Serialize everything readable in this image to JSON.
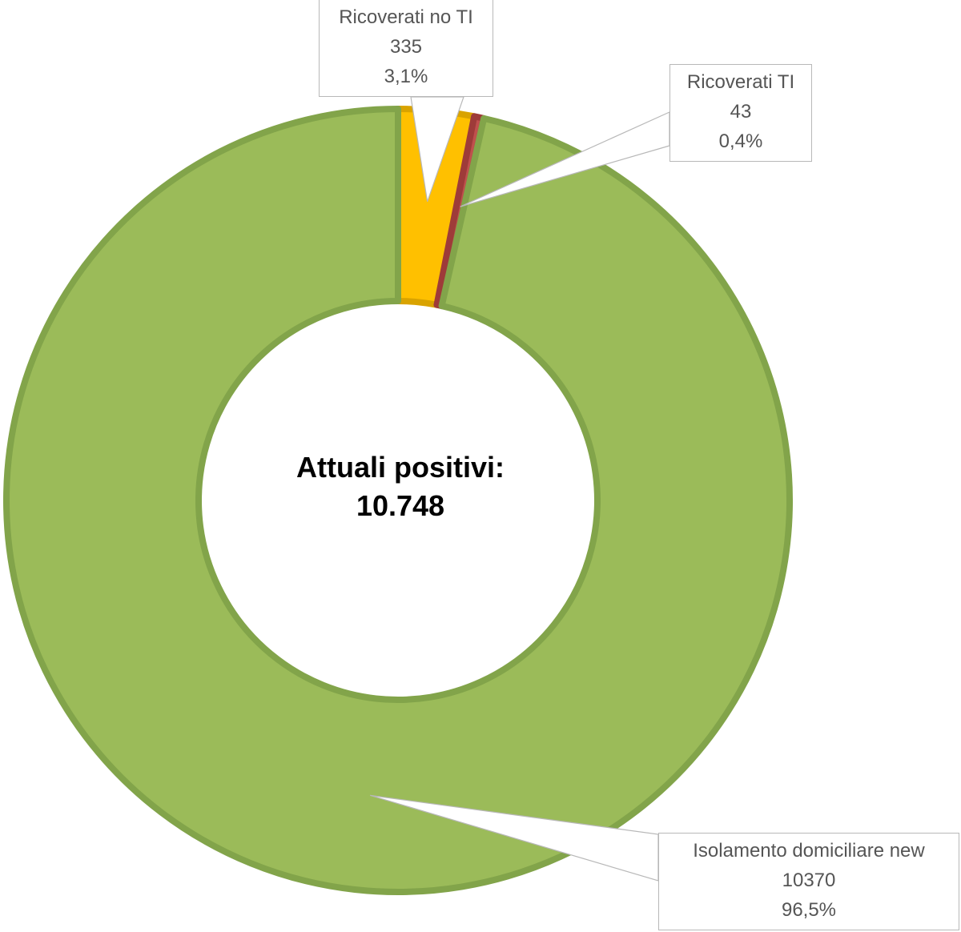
{
  "chart_data": {
    "type": "donut",
    "title": "",
    "center_label": {
      "line1": "Attuali positivi:",
      "line2": "10.748"
    },
    "slices": [
      {
        "name": "Ricoverati no TI",
        "value": 335,
        "value_label": "335",
        "percent_label": "3,1%",
        "color": "#FFC000",
        "border": "#D9A300"
      },
      {
        "name": "Ricoverati TI",
        "value": 43,
        "value_label": "43",
        "percent_label": "0,4%",
        "color": "#C0504D",
        "border": "#9E3B39"
      },
      {
        "name": "Isolamento domiciliare new",
        "value": 10370,
        "value_label": "10370",
        "percent_label": "96,5%",
        "color": "#9BBB59",
        "border": "#82A44A"
      }
    ]
  }
}
